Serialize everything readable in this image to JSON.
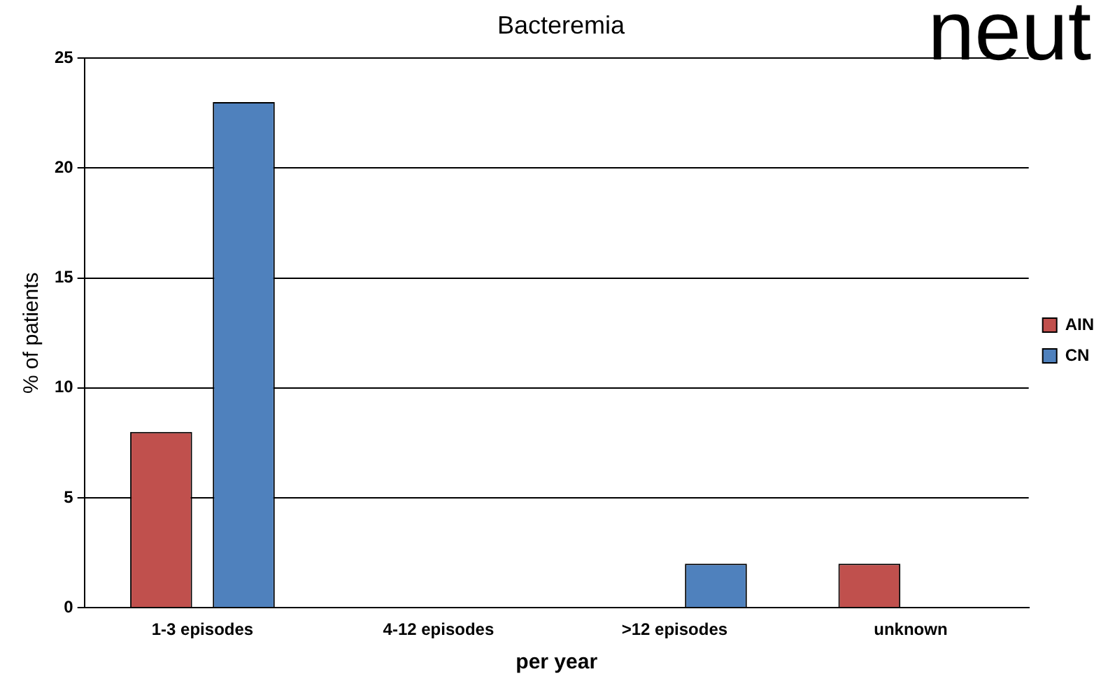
{
  "chart_data": {
    "type": "bar",
    "title": "Bacteremia",
    "xlabel": "per year",
    "ylabel": "% of patients",
    "categories": [
      "1-3 episodes",
      "4-12 episodes",
      ">12 episodes",
      "unknown"
    ],
    "series": [
      {
        "name": "AIN",
        "color": "#c0504d",
        "values": [
          8,
          0,
          0,
          2
        ]
      },
      {
        "name": "CN",
        "color": "#4f81bd",
        "values": [
          23,
          0,
          2,
          0
        ]
      }
    ],
    "ylim": [
      0,
      25
    ],
    "yticks": [
      0,
      5,
      10,
      15,
      20,
      25
    ],
    "grid": "y",
    "legend": "right",
    "annotations": [
      "neut"
    ]
  }
}
